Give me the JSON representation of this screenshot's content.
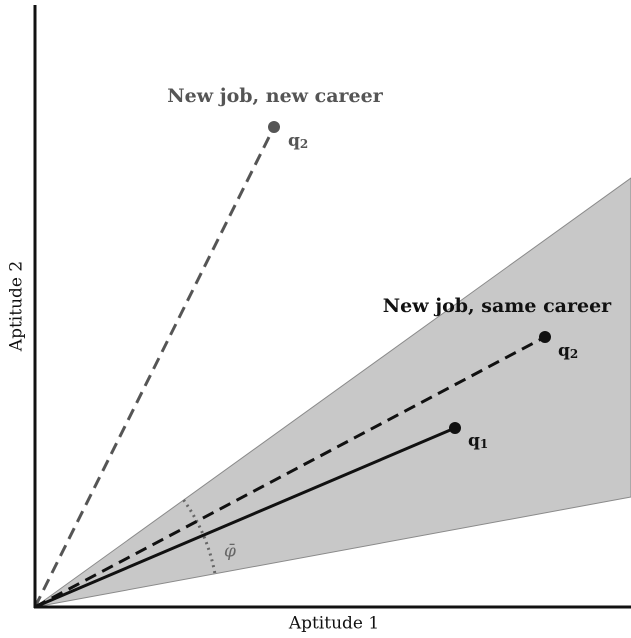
{
  "annotations": {
    "new_career": "New job, new career",
    "same_career": "New job, same career"
  },
  "points": [
    {
      "letter": "q",
      "subscript": "1"
    },
    {
      "letter": "q",
      "subscript": "2"
    },
    {
      "letter": "q",
      "subscript": "2"
    }
  ],
  "angle_label": "φ̄",
  "axes": {
    "x_label": "Aptitude 1",
    "y_label": "Aptitude 2"
  }
}
